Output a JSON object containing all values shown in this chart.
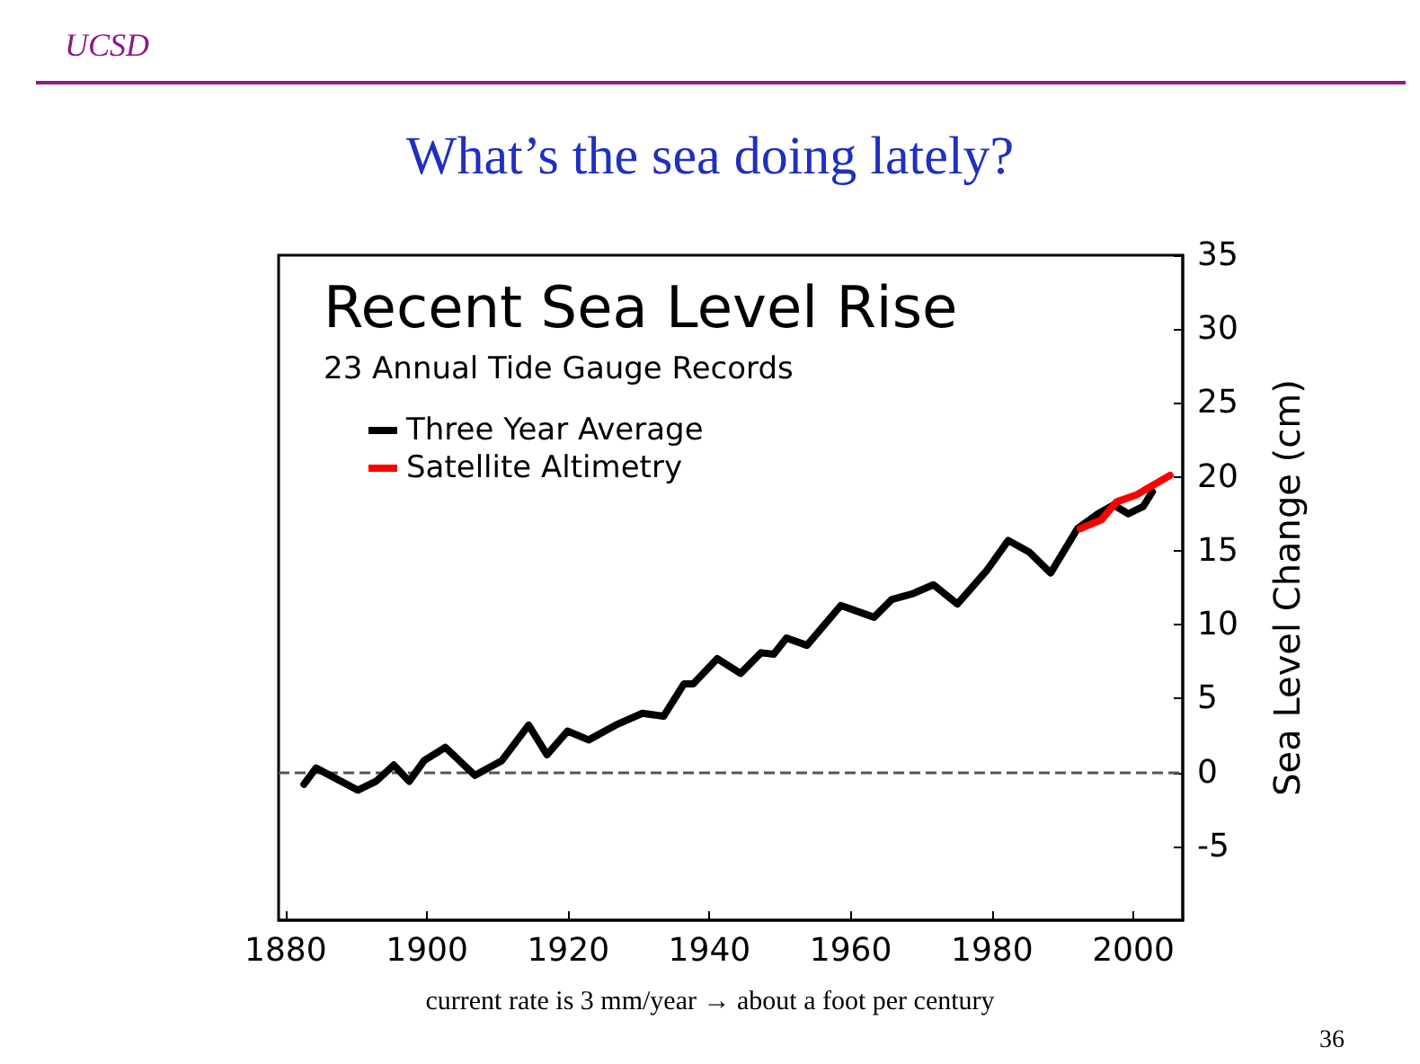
{
  "chart_data": {
    "type": "line",
    "title": "Recent Sea Level Rise",
    "subtitle": "23 Annual Tide Gauge Records",
    "ylabel": "Sea Level Change (cm)",
    "annotations": [
      "UCSD",
      "What’s the sea doing lately?",
      "current rate is 3 mm/year → about a foot per century",
      "36"
    ],
    "xlim": [
      1879,
      2007
    ],
    "xticks": [
      1880,
      1900,
      1920,
      1940,
      1960,
      1980,
      2000
    ],
    "ylim": [
      -10,
      35
    ],
    "yticks": [
      -5,
      0,
      5,
      10,
      15,
      20,
      25,
      30,
      35
    ],
    "series": [
      {
        "name": "Three Year Average",
        "color": "#000000",
        "x": [
          1882.6,
          1884.3,
          1890.2,
          1892.8,
          1895.3,
          1897.5,
          1899.6,
          1902.6,
          1906.8,
          1910.6,
          1914.4,
          1917,
          1919.9,
          1922.9,
          1926.7,
          1930.5,
          1933.5,
          1936.4,
          1937.7,
          1941.1,
          1944.4,
          1947.3,
          1949.1,
          1950.9,
          1953.8,
          1958.6,
          1963.3,
          1965.8,
          1968.8,
          1971.7,
          1975.1,
          1979.3,
          1982.3,
          1985.3,
          1988.3,
          1992.1,
          1995,
          1997.2,
          1999.3,
          2001.4,
          2002.7
        ],
        "values": [
          -0.8,
          0.3,
          -1.2,
          -0.6,
          0.5,
          -0.6,
          0.8,
          1.7,
          -0.2,
          0.8,
          3.2,
          1.2,
          2.8,
          2.2,
          3.2,
          4,
          3.8,
          6,
          6,
          7.7,
          6.7,
          8.1,
          8,
          9.1,
          8.6,
          11.3,
          10.5,
          11.7,
          12.1,
          12.7,
          11.4,
          13.7,
          15.7,
          14.9,
          13.5,
          16.5,
          17.5,
          18.1,
          17.5,
          18,
          19
        ]
      },
      {
        "name": "Satellite Altimetry",
        "color": "#ff0000",
        "x": [
          1992.5,
          1995.5,
          1997.6,
          2000.5,
          2005.2
        ],
        "values": [
          16.5,
          17.1,
          18.3,
          18.8,
          20.1
        ]
      }
    ],
    "ref_lines": [
      {
        "axis": "y",
        "value": 0,
        "color": "#555555",
        "line_style": "dashed"
      }
    ],
    "legend": "top left",
    "grid": false,
    "marker": "none",
    "line_style": "solid"
  }
}
